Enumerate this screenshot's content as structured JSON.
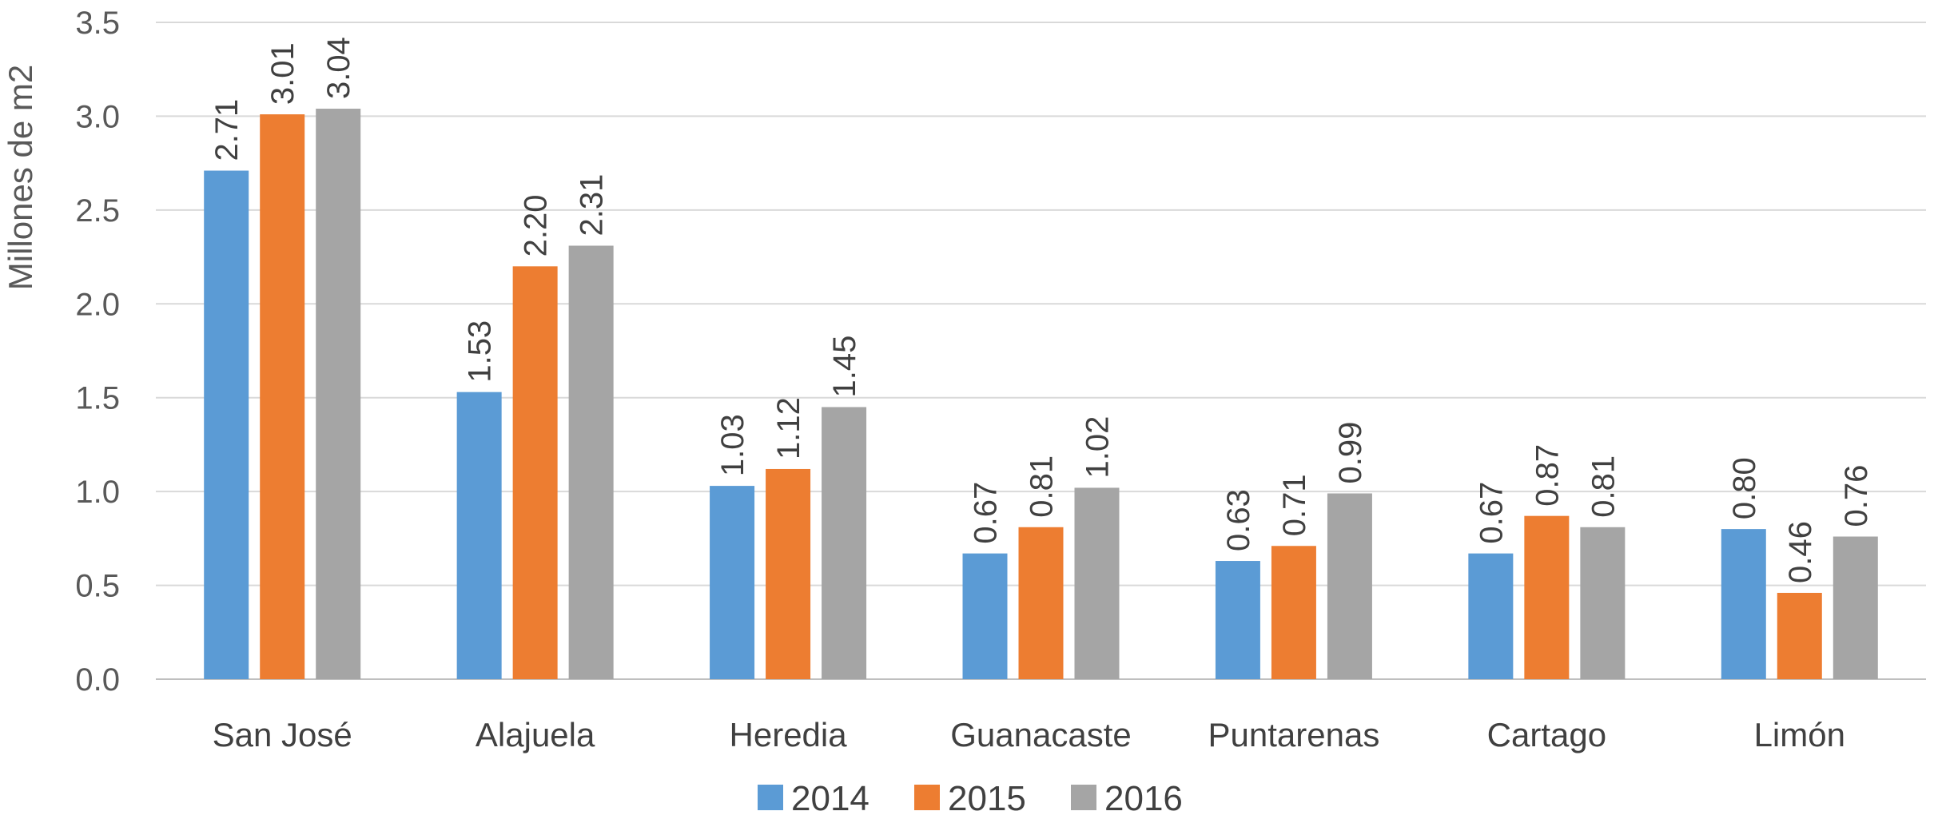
{
  "chart_data": {
    "type": "bar",
    "title": "",
    "xlabel": "",
    "ylabel": "Millones de m2",
    "categories": [
      "San José",
      "Alajuela",
      "Heredia",
      "Guanacaste",
      "Puntarenas",
      "Cartago",
      "Limón"
    ],
    "series": [
      {
        "name": "2014",
        "color": "#5B9BD5",
        "values": [
          2.71,
          1.53,
          1.03,
          0.67,
          0.63,
          0.67,
          0.8
        ],
        "labels": [
          "2.71",
          "1.53",
          "1.03",
          "0.67",
          "0.63",
          "0.67",
          "0.80"
        ]
      },
      {
        "name": "2015",
        "color": "#ED7D31",
        "values": [
          3.01,
          2.2,
          1.12,
          0.81,
          0.71,
          0.87,
          0.46
        ],
        "labels": [
          "3.01",
          "2.20",
          "1.12",
          "0.81",
          "0.71",
          "0.87",
          "0.46"
        ]
      },
      {
        "name": "2016",
        "color": "#A5A5A5",
        "values": [
          3.04,
          2.31,
          1.45,
          1.02,
          0.99,
          0.81,
          0.76
        ],
        "labels": [
          "3.04",
          "2.31",
          "1.45",
          "1.02",
          "0.99",
          "0.81",
          "0.76"
        ]
      }
    ],
    "ylim": [
      0,
      3.5
    ],
    "yticks": [
      "0.0",
      "0.5",
      "1.0",
      "1.5",
      "2.0",
      "2.5",
      "3.0",
      "3.5"
    ],
    "grid": true,
    "legend": "bottom"
  }
}
